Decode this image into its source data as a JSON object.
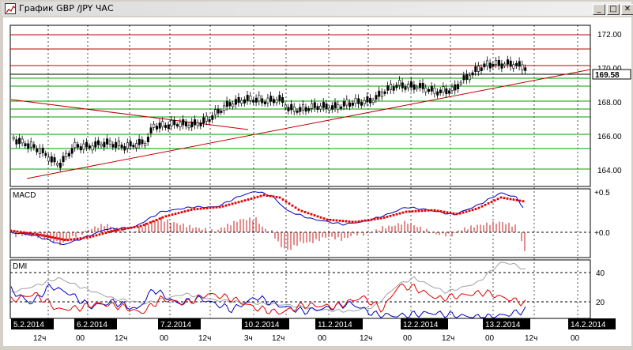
{
  "window": {
    "title": "График GBP /JPY ЧАС",
    "controls": [
      "_",
      "□",
      "✕"
    ],
    "icon": "chart-icon"
  },
  "price_panel": {
    "y_ticks": [
      "172.00",
      "170.00",
      "168.00",
      "166.00",
      "164.00"
    ],
    "current_price": "169.58"
  },
  "macd_panel": {
    "label": "MACD",
    "y_ticks": [
      "+0.5",
      "+0.0"
    ]
  },
  "dmi_panel": {
    "label": "DMI",
    "y_ticks": [
      "40",
      "20"
    ]
  },
  "time_axis": {
    "dates": [
      "5.2.2014",
      "6.2.2014",
      "7.2.2014",
      "10.2.2014",
      "11.2.2014",
      "12.2.2014",
      "13.2.2014",
      "14.2.2014"
    ],
    "hours": [
      "12ч",
      "00",
      "12ч",
      "00",
      "12ч",
      "3ч",
      "12ч",
      "00",
      "12ч",
      "00",
      "12ч",
      "00",
      "12ч",
      "00"
    ]
  },
  "colors": {
    "price_candle": "#000000",
    "resistance_line": "#c00000",
    "support_line": "#00a000",
    "trendline": "#c00000",
    "macd_line": "#0000c0",
    "macd_signal": "#e00000",
    "macd_histogram": "#c00000",
    "dmi_plus": "#0000c0",
    "dmi_minus": "#e00000",
    "adx": "#a0a0a0"
  }
}
